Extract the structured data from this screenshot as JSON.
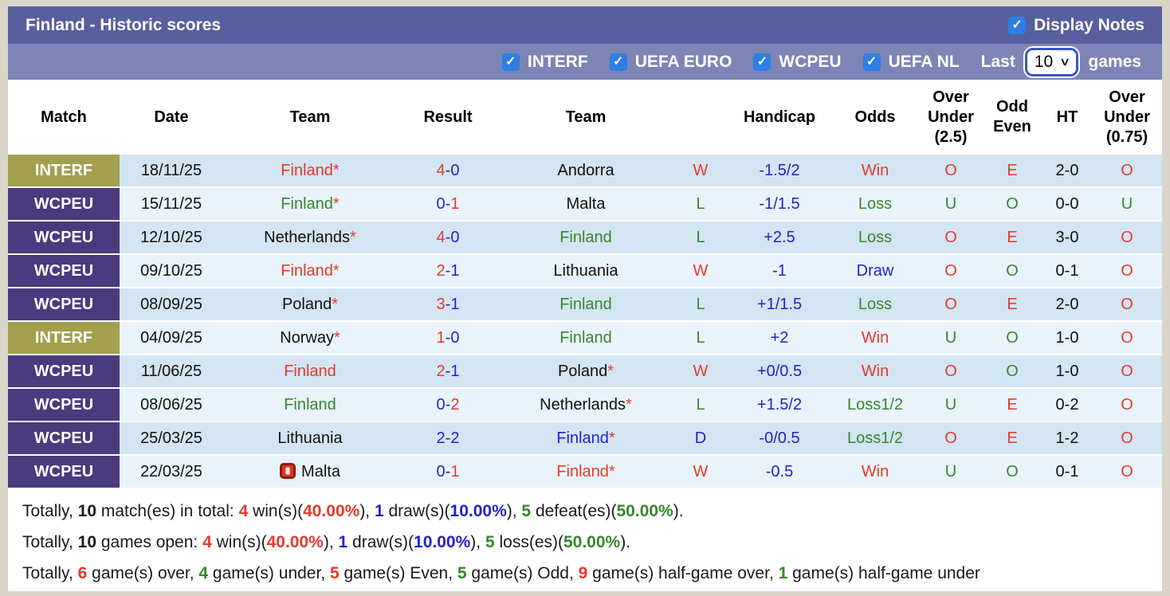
{
  "icons": {
    "check": "✓",
    "chevron_down": "∨"
  },
  "title_bar": {
    "title": "Finland - Historic scores",
    "display_notes_label": "Display Notes",
    "display_notes_checked": true
  },
  "filter_bar": {
    "filters": [
      {
        "label": "INTERF",
        "checked": true
      },
      {
        "label": "UEFA EURO",
        "checked": true
      },
      {
        "label": "WCPEU",
        "checked": true
      },
      {
        "label": "UEFA NL",
        "checked": true
      }
    ],
    "last_label": "Last",
    "select_value": "10",
    "games_label": "games"
  },
  "colors": {
    "title_bar": "#575f9e",
    "filter_bar": "#7d85b6",
    "checkbox_blue": "#2e7ee3",
    "badge_interf": "#a49f4d",
    "badge_wcpeu": "#4a3a7e",
    "row_odd": "#d3e5f3",
    "row_even": "#e9f3fb",
    "red": "#e6392b",
    "green": "#38852f",
    "blue": "#2222cc"
  },
  "table": {
    "columns": [
      "Match",
      "Date",
      "Team",
      "Result",
      "Team",
      "",
      "Handicap",
      "Odds",
      "Over\nUnder\n(2.5)",
      "Odd\nEven",
      "HT",
      "Over\nUnder\n(0.75)"
    ],
    "rows": [
      {
        "comp": "INTERF",
        "comp_cls": "badge-interf",
        "date": "18/11/25",
        "home_icon": "",
        "home": "Finland",
        "home_cls": "c-red",
        "home_star": "*",
        "sh": "4",
        "sh_cls": "c-red",
        "sep": "-",
        "sep_cls": "c-blue",
        "sa": "0",
        "sa_cls": "c-blue",
        "away": "Andorra",
        "away_cls": "c-black",
        "away_star": "",
        "wld": "W",
        "wld_cls": "c-red",
        "hcp": "-1.5/2",
        "hcp_cls": "c-blue",
        "odds": "Win",
        "odds_cls": "c-red",
        "ou25": "O",
        "ou25_cls": "c-red",
        "oe": "E",
        "oe_cls": "c-red",
        "ht": "2-0",
        "ou075": "O",
        "ou075_cls": "c-red"
      },
      {
        "comp": "WCPEU",
        "comp_cls": "badge-wcpeu",
        "date": "15/11/25",
        "home_icon": "",
        "home": "Finland",
        "home_cls": "c-green",
        "home_star": "*",
        "sh": "0",
        "sh_cls": "c-blue",
        "sep": "-",
        "sep_cls": "c-blue",
        "sa": "1",
        "sa_cls": "c-red",
        "away": "Malta",
        "away_cls": "c-black",
        "away_star": "",
        "wld": "L",
        "wld_cls": "c-green",
        "hcp": "-1/1.5",
        "hcp_cls": "c-blue",
        "odds": "Loss",
        "odds_cls": "c-green",
        "ou25": "U",
        "ou25_cls": "c-green",
        "oe": "O",
        "oe_cls": "c-green",
        "ht": "0-0",
        "ou075": "U",
        "ou075_cls": "c-green"
      },
      {
        "comp": "WCPEU",
        "comp_cls": "badge-wcpeu",
        "date": "12/10/25",
        "home_icon": "",
        "home": "Netherlands",
        "home_cls": "c-black",
        "home_star": "*",
        "sh": "4",
        "sh_cls": "c-red",
        "sep": "-",
        "sep_cls": "c-blue",
        "sa": "0",
        "sa_cls": "c-blue",
        "away": "Finland",
        "away_cls": "c-green",
        "away_star": "",
        "wld": "L",
        "wld_cls": "c-green",
        "hcp": "+2.5",
        "hcp_cls": "c-blue",
        "odds": "Loss",
        "odds_cls": "c-green",
        "ou25": "O",
        "ou25_cls": "c-red",
        "oe": "E",
        "oe_cls": "c-red",
        "ht": "3-0",
        "ou075": "O",
        "ou075_cls": "c-red"
      },
      {
        "comp": "WCPEU",
        "comp_cls": "badge-wcpeu",
        "date": "09/10/25",
        "home_icon": "",
        "home": "Finland",
        "home_cls": "c-red",
        "home_star": "*",
        "sh": "2",
        "sh_cls": "c-red",
        "sep": "-",
        "sep_cls": "c-blue",
        "sa": "1",
        "sa_cls": "c-blue",
        "away": "Lithuania",
        "away_cls": "c-black",
        "away_star": "",
        "wld": "W",
        "wld_cls": "c-red",
        "hcp": "-1",
        "hcp_cls": "c-blue",
        "odds": "Draw",
        "odds_cls": "c-blue",
        "ou25": "O",
        "ou25_cls": "c-red",
        "oe": "O",
        "oe_cls": "c-green",
        "ht": "0-1",
        "ou075": "O",
        "ou075_cls": "c-red"
      },
      {
        "comp": "WCPEU",
        "comp_cls": "badge-wcpeu",
        "date": "08/09/25",
        "home_icon": "",
        "home": "Poland",
        "home_cls": "c-black",
        "home_star": "*",
        "sh": "3",
        "sh_cls": "c-red",
        "sep": "-",
        "sep_cls": "c-blue",
        "sa": "1",
        "sa_cls": "c-blue",
        "away": "Finland",
        "away_cls": "c-green",
        "away_star": "",
        "wld": "L",
        "wld_cls": "c-green",
        "hcp": "+1/1.5",
        "hcp_cls": "c-blue",
        "odds": "Loss",
        "odds_cls": "c-green",
        "ou25": "O",
        "ou25_cls": "c-red",
        "oe": "E",
        "oe_cls": "c-red",
        "ht": "2-0",
        "ou075": "O",
        "ou075_cls": "c-red"
      },
      {
        "comp": "INTERF",
        "comp_cls": "badge-interf",
        "date": "04/09/25",
        "home_icon": "",
        "home": "Norway",
        "home_cls": "c-black",
        "home_star": "*",
        "sh": "1",
        "sh_cls": "c-red",
        "sep": "-",
        "sep_cls": "c-blue",
        "sa": "0",
        "sa_cls": "c-blue",
        "away": "Finland",
        "away_cls": "c-green",
        "away_star": "",
        "wld": "L",
        "wld_cls": "c-green",
        "hcp": "+2",
        "hcp_cls": "c-blue",
        "odds": "Win",
        "odds_cls": "c-red",
        "ou25": "U",
        "ou25_cls": "c-green",
        "oe": "O",
        "oe_cls": "c-green",
        "ht": "1-0",
        "ou075": "O",
        "ou075_cls": "c-red"
      },
      {
        "comp": "WCPEU",
        "comp_cls": "badge-wcpeu",
        "date": "11/06/25",
        "home_icon": "",
        "home": "Finland",
        "home_cls": "c-red",
        "home_star": "",
        "sh": "2",
        "sh_cls": "c-red",
        "sep": "-",
        "sep_cls": "c-blue",
        "sa": "1",
        "sa_cls": "c-blue",
        "away": "Poland",
        "away_cls": "c-black",
        "away_star": "*",
        "wld": "W",
        "wld_cls": "c-red",
        "hcp": "+0/0.5",
        "hcp_cls": "c-blue",
        "odds": "Win",
        "odds_cls": "c-red",
        "ou25": "O",
        "ou25_cls": "c-red",
        "oe": "O",
        "oe_cls": "c-green",
        "ht": "1-0",
        "ou075": "O",
        "ou075_cls": "c-red"
      },
      {
        "comp": "WCPEU",
        "comp_cls": "badge-wcpeu",
        "date": "08/06/25",
        "home_icon": "",
        "home": "Finland",
        "home_cls": "c-green",
        "home_star": "",
        "sh": "0",
        "sh_cls": "c-blue",
        "sep": "-",
        "sep_cls": "c-blue",
        "sa": "2",
        "sa_cls": "c-red",
        "away": "Netherlands",
        "away_cls": "c-black",
        "away_star": "*",
        "wld": "L",
        "wld_cls": "c-green",
        "hcp": "+1.5/2",
        "hcp_cls": "c-blue",
        "odds": "Loss1/2",
        "odds_cls": "c-green",
        "ou25": "U",
        "ou25_cls": "c-green",
        "oe": "E",
        "oe_cls": "c-red",
        "ht": "0-2",
        "ou075": "O",
        "ou075_cls": "c-red"
      },
      {
        "comp": "WCPEU",
        "comp_cls": "badge-wcpeu",
        "date": "25/03/25",
        "home_icon": "",
        "home": "Lithuania",
        "home_cls": "c-black",
        "home_star": "",
        "sh": "2",
        "sh_cls": "c-blue",
        "sep": "-",
        "sep_cls": "c-blue",
        "sa": "2",
        "sa_cls": "c-blue",
        "away": "Finland",
        "away_cls": "c-blue",
        "away_star": "*",
        "wld": "D",
        "wld_cls": "c-blue",
        "hcp": "-0/0.5",
        "hcp_cls": "c-blue",
        "odds": "Loss1/2",
        "odds_cls": "c-green",
        "ou25": "O",
        "ou25_cls": "c-red",
        "oe": "E",
        "oe_cls": "c-red",
        "ht": "1-2",
        "ou075": "O",
        "ou075_cls": "c-red"
      },
      {
        "comp": "WCPEU",
        "comp_cls": "badge-wcpeu",
        "date": "22/03/25",
        "home_icon": "red-card-icon",
        "home": "Malta",
        "home_cls": "c-black",
        "home_star": "",
        "sh": "0",
        "sh_cls": "c-blue",
        "sep": "-",
        "sep_cls": "c-blue",
        "sa": "1",
        "sa_cls": "c-red",
        "away": "Finland",
        "away_cls": "c-red",
        "away_star": "*",
        "wld": "W",
        "wld_cls": "c-red",
        "hcp": "-0.5",
        "hcp_cls": "c-blue",
        "odds": "Win",
        "odds_cls": "c-red",
        "ou25": "U",
        "ou25_cls": "c-green",
        "oe": "O",
        "oe_cls": "c-green",
        "ht": "0-1",
        "ou075": "O",
        "ou075_cls": "c-red"
      }
    ]
  },
  "footer": {
    "lines": [
      [
        {
          "t": "Totally, "
        },
        {
          "t": "10",
          "b": 1
        },
        {
          "t": " match(es) in total: "
        },
        {
          "t": "4",
          "c": "c-red",
          "b": 1
        },
        {
          "t": " win(s)("
        },
        {
          "t": "40.00%",
          "c": "c-red",
          "b": 1
        },
        {
          "t": "), "
        },
        {
          "t": "1",
          "c": "c-blue",
          "b": 1
        },
        {
          "t": " draw(s)("
        },
        {
          "t": "10.00%",
          "c": "c-blue",
          "b": 1
        },
        {
          "t": "), "
        },
        {
          "t": "5",
          "c": "c-green",
          "b": 1
        },
        {
          "t": " defeat(es)("
        },
        {
          "t": "50.00%",
          "c": "c-green",
          "b": 1
        },
        {
          "t": ")."
        }
      ],
      [
        {
          "t": "Totally, "
        },
        {
          "t": "10",
          "b": 1
        },
        {
          "t": " games open: "
        },
        {
          "t": "4",
          "c": "c-red",
          "b": 1
        },
        {
          "t": " win(s)("
        },
        {
          "t": "40.00%",
          "c": "c-red",
          "b": 1
        },
        {
          "t": "), "
        },
        {
          "t": "1",
          "c": "c-blue",
          "b": 1
        },
        {
          "t": " draw(s)("
        },
        {
          "t": "10.00%",
          "c": "c-blue",
          "b": 1
        },
        {
          "t": "), "
        },
        {
          "t": "5",
          "c": "c-green",
          "b": 1
        },
        {
          "t": " loss(es)("
        },
        {
          "t": "50.00%",
          "c": "c-green",
          "b": 1
        },
        {
          "t": ")."
        }
      ],
      [
        {
          "t": "Totally, "
        },
        {
          "t": "6",
          "c": "c-red",
          "b": 1
        },
        {
          "t": " game(s) over, "
        },
        {
          "t": "4",
          "c": "c-green",
          "b": 1
        },
        {
          "t": " game(s) under, "
        },
        {
          "t": "5",
          "c": "c-red",
          "b": 1
        },
        {
          "t": " game(s) Even, "
        },
        {
          "t": "5",
          "c": "c-green",
          "b": 1
        },
        {
          "t": " game(s) Odd, "
        },
        {
          "t": "9",
          "c": "c-red",
          "b": 1
        },
        {
          "t": " game(s) half-game over, "
        },
        {
          "t": "1",
          "c": "c-green",
          "b": 1
        },
        {
          "t": " game(s) half-game under"
        }
      ]
    ]
  }
}
